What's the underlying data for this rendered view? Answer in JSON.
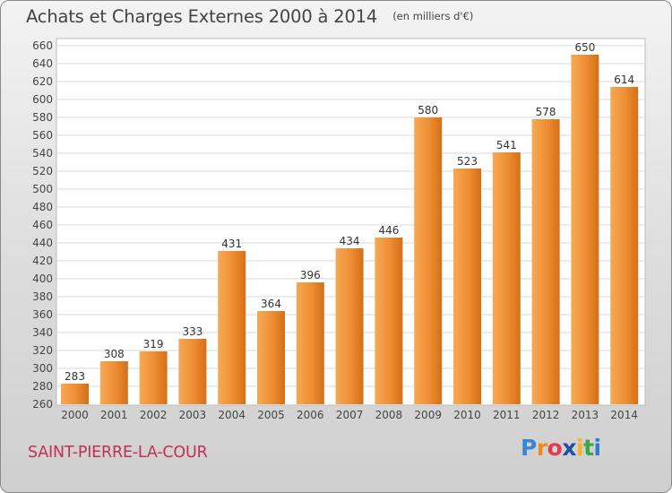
{
  "title": "Achats et Charges Externes 2000 à 2014",
  "unit_label": "(en milliers d'€)",
  "commune": "SAINT-PIERRE-LA-COUR",
  "logo": {
    "text": "Proxiti",
    "letters": [
      {
        "char": "P",
        "color": "#3a86d6"
      },
      {
        "char": "r",
        "color": "#f08a1c"
      },
      {
        "char": "o",
        "color": "#e23a4e"
      },
      {
        "char": "x",
        "color": "#1f4fa8"
      },
      {
        "char": "i",
        "color": "#f6b221"
      },
      {
        "char": "t",
        "color": "#3aa84a"
      },
      {
        "char": "i",
        "color": "#2b7fd3"
      }
    ]
  },
  "colors": {
    "bar_light": "#f6a955",
    "bar_dark": "#d46f17",
    "bar_mid": "#ee8d33",
    "commune": "#c0305a"
  },
  "chart_data": {
    "type": "bar",
    "title": "Achats et Charges Externes 2000 à 2014",
    "unit": "(en milliers d'€)",
    "categories": [
      "2000",
      "2001",
      "2002",
      "2003",
      "2004",
      "2005",
      "2006",
      "2007",
      "2008",
      "2009",
      "2010",
      "2011",
      "2012",
      "2013",
      "2014"
    ],
    "values": [
      283,
      308,
      319,
      333,
      431,
      364,
      396,
      434,
      446,
      580,
      523,
      541,
      578,
      650,
      614
    ],
    "ylim": [
      260,
      660
    ],
    "ytick_step": 20,
    "grid": true,
    "legend": "none"
  }
}
